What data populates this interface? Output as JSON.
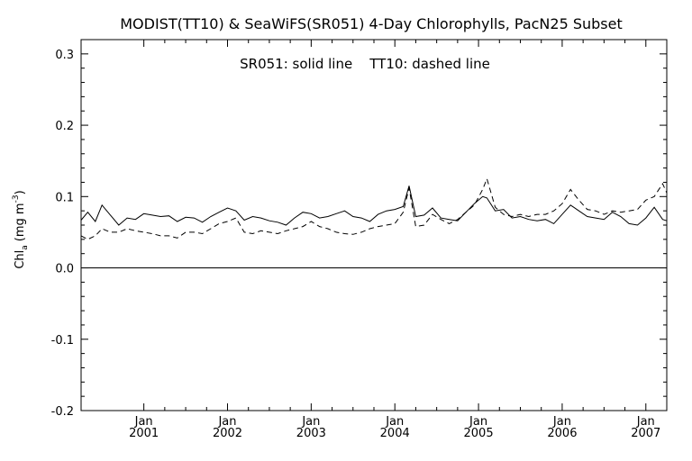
{
  "chart_data": {
    "type": "line",
    "title": "MODIST(TT10) & SeaWiFS(SR051) 4-Day Chlorophylls, PacN25 Subset",
    "annotation": "SR051: solid line    TT10: dashed line",
    "ylabel_main": "Chl",
    "ylabel_sub": "a",
    "ylabel_units": "(mg m",
    "ylabel_sup": "-3",
    "ylabel_close": ")",
    "ylim": [
      -0.2,
      0.32
    ],
    "xlim": [
      2000.25,
      2007.25
    ],
    "yticks": [
      -0.2,
      -0.1,
      0.0,
      0.1,
      0.2,
      0.3
    ],
    "ytick_labels": [
      "-0.2",
      "-0.1",
      "0.0",
      "0.1",
      "0.2",
      "0.3"
    ],
    "xticks": [
      {
        "x": 2001,
        "month": "Jan",
        "year": "2001"
      },
      {
        "x": 2002,
        "month": "Jan",
        "year": "2002"
      },
      {
        "x": 2003,
        "month": "Jan",
        "year": "2003"
      },
      {
        "x": 2004,
        "month": "Jan",
        "year": "2004"
      },
      {
        "x": 2005,
        "month": "Jan",
        "year": "2005"
      },
      {
        "x": 2006,
        "month": "Jan",
        "year": "2006"
      },
      {
        "x": 2007,
        "month": "Jan",
        "year": "2007"
      }
    ],
    "zero_line": 0.0,
    "series": [
      {
        "name": "SR051",
        "style": "solid",
        "x": [
          2000.25,
          2000.33,
          2000.42,
          2000.5,
          2000.6,
          2000.7,
          2000.8,
          2000.9,
          2001.0,
          2001.1,
          2001.2,
          2001.3,
          2001.4,
          2001.5,
          2001.6,
          2001.7,
          2001.8,
          2001.9,
          2002.0,
          2002.1,
          2002.2,
          2002.3,
          2002.4,
          2002.5,
          2002.6,
          2002.7,
          2002.8,
          2002.9,
          2003.0,
          2003.1,
          2003.2,
          2003.3,
          2003.4,
          2003.5,
          2003.6,
          2003.7,
          2003.8,
          2003.9,
          2004.0,
          2004.1,
          2004.17,
          2004.25,
          2004.35,
          2004.45,
          2004.55,
          2004.65,
          2004.75,
          2004.85,
          2004.95,
          2005.05,
          2005.1,
          2005.2,
          2005.3,
          2005.4,
          2005.5,
          2005.6,
          2005.7,
          2005.8,
          2005.9,
          2006.0,
          2006.1,
          2006.2,
          2006.3,
          2006.4,
          2006.5,
          2006.6,
          2006.7,
          2006.8,
          2006.9,
          2007.0,
          2007.1,
          2007.2,
          2007.25
        ],
        "y": [
          0.067,
          0.078,
          0.065,
          0.088,
          0.074,
          0.06,
          0.07,
          0.068,
          0.076,
          0.074,
          0.072,
          0.073,
          0.065,
          0.071,
          0.07,
          0.064,
          0.072,
          0.078,
          0.084,
          0.08,
          0.067,
          0.072,
          0.07,
          0.066,
          0.064,
          0.06,
          0.07,
          0.078,
          0.076,
          0.07,
          0.072,
          0.076,
          0.08,
          0.072,
          0.07,
          0.065,
          0.075,
          0.08,
          0.082,
          0.086,
          0.115,
          0.072,
          0.074,
          0.084,
          0.07,
          0.068,
          0.066,
          0.078,
          0.09,
          0.1,
          0.098,
          0.08,
          0.082,
          0.07,
          0.072,
          0.068,
          0.066,
          0.068,
          0.062,
          0.075,
          0.088,
          0.08,
          0.072,
          0.07,
          0.068,
          0.078,
          0.072,
          0.062,
          0.06,
          0.07,
          0.085,
          0.068,
          0.066
        ]
      },
      {
        "name": "TT10",
        "style": "dashed",
        "x": [
          2000.25,
          2000.33,
          2000.42,
          2000.5,
          2000.6,
          2000.7,
          2000.8,
          2000.9,
          2001.0,
          2001.1,
          2001.2,
          2001.3,
          2001.4,
          2001.5,
          2001.6,
          2001.7,
          2001.8,
          2001.9,
          2002.0,
          2002.1,
          2002.2,
          2002.3,
          2002.4,
          2002.5,
          2002.6,
          2002.7,
          2002.8,
          2002.9,
          2003.0,
          2003.1,
          2003.2,
          2003.3,
          2003.4,
          2003.5,
          2003.6,
          2003.7,
          2003.8,
          2003.9,
          2004.0,
          2004.1,
          2004.17,
          2004.25,
          2004.35,
          2004.45,
          2004.55,
          2004.65,
          2004.75,
          2004.85,
          2004.95,
          2005.05,
          2005.1,
          2005.2,
          2005.3,
          2005.4,
          2005.5,
          2005.6,
          2005.7,
          2005.8,
          2005.9,
          2006.0,
          2006.1,
          2006.2,
          2006.3,
          2006.4,
          2006.5,
          2006.6,
          2006.7,
          2006.8,
          2006.9,
          2007.0,
          2007.1,
          2007.2,
          2007.25
        ],
        "y": [
          0.045,
          0.04,
          0.045,
          0.055,
          0.05,
          0.05,
          0.055,
          0.052,
          0.05,
          0.048,
          0.045,
          0.045,
          0.042,
          0.05,
          0.05,
          0.048,
          0.055,
          0.062,
          0.065,
          0.07,
          0.05,
          0.048,
          0.052,
          0.05,
          0.048,
          0.052,
          0.055,
          0.058,
          0.065,
          0.058,
          0.055,
          0.05,
          0.048,
          0.047,
          0.05,
          0.055,
          0.058,
          0.06,
          0.062,
          0.078,
          0.112,
          0.058,
          0.06,
          0.075,
          0.068,
          0.062,
          0.068,
          0.078,
          0.088,
          0.11,
          0.125,
          0.085,
          0.075,
          0.072,
          0.075,
          0.072,
          0.075,
          0.075,
          0.08,
          0.09,
          0.11,
          0.095,
          0.082,
          0.08,
          0.075,
          0.08,
          0.078,
          0.08,
          0.082,
          0.095,
          0.1,
          0.118,
          0.105
        ]
      }
    ]
  }
}
